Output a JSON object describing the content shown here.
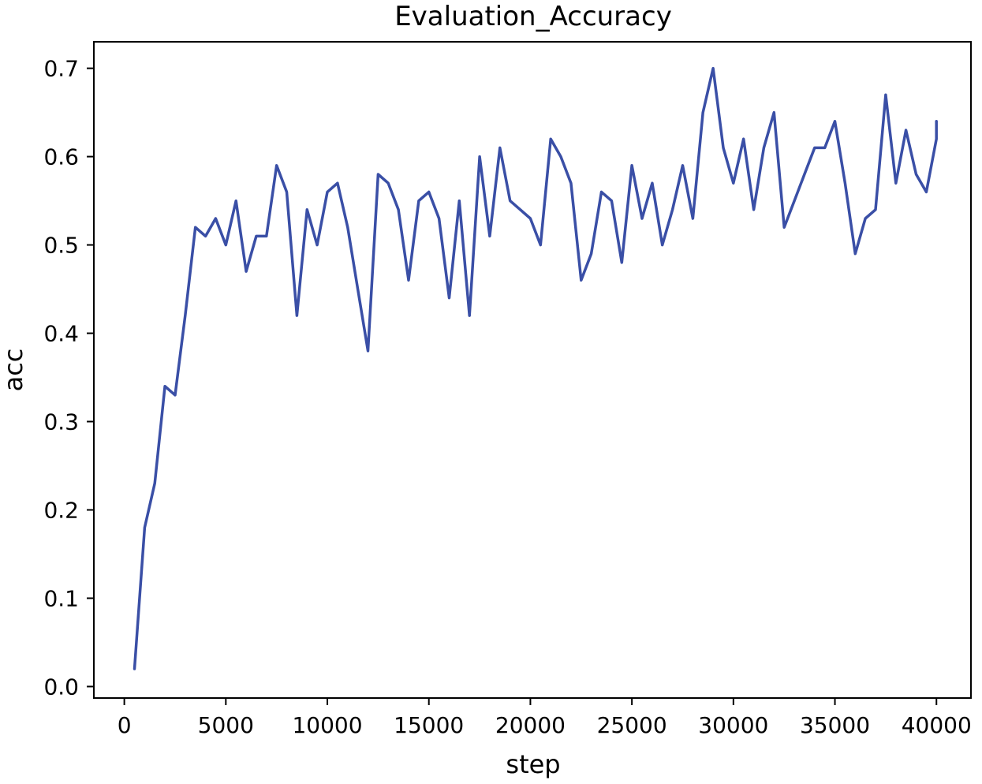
{
  "chart_data": {
    "type": "line",
    "title": "Evaluation_Accuracy",
    "xlabel": "step",
    "ylabel": "acc",
    "xlim": [
      -1500,
      41700
    ],
    "ylim": [
      -0.013,
      0.73
    ],
    "xticks": [
      0,
      5000,
      10000,
      15000,
      20000,
      25000,
      30000,
      35000,
      40000
    ],
    "yticks": [
      0.0,
      0.1,
      0.2,
      0.3,
      0.4,
      0.5,
      0.6,
      0.7
    ],
    "ytick_labels": [
      "0.0",
      "0.1",
      "0.2",
      "0.3",
      "0.4",
      "0.5",
      "0.6",
      "0.7"
    ],
    "grid": false,
    "legend": "none",
    "color": "#3a4fa6",
    "series": [
      {
        "x": [
          500,
          1000,
          1500,
          2000,
          2500,
          3000,
          3500,
          4000,
          4500,
          5000,
          5500,
          6000,
          6500,
          7000,
          7500,
          8000,
          8500,
          9000,
          9500,
          10000,
          10500,
          11000,
          11500,
          12000,
          12500,
          13000,
          13500,
          14000,
          14500,
          15000,
          15500,
          16000,
          16500,
          17000,
          17500,
          18000,
          18500,
          19000,
          19500,
          20000,
          20500,
          21000,
          21500,
          22000,
          22500,
          23000,
          23500,
          24000,
          24500,
          25000,
          25500,
          26000,
          26500,
          27000,
          27500,
          28000,
          28500,
          29000,
          29500,
          30000,
          30500,
          31000,
          31500,
          32000,
          32500,
          33000,
          33500,
          34000,
          34500,
          35000,
          35500,
          36000,
          36500,
          37000,
          37500,
          38000,
          38500,
          39000,
          39500,
          40000,
          40000
        ],
        "values": [
          0.02,
          0.18,
          0.23,
          0.34,
          0.33,
          0.42,
          0.52,
          0.51,
          0.53,
          0.5,
          0.55,
          0.47,
          0.51,
          0.51,
          0.59,
          0.56,
          0.42,
          0.54,
          0.5,
          0.56,
          0.57,
          0.52,
          0.45,
          0.38,
          0.58,
          0.57,
          0.54,
          0.46,
          0.55,
          0.56,
          0.53,
          0.44,
          0.55,
          0.42,
          0.6,
          0.51,
          0.61,
          0.55,
          0.54,
          0.53,
          0.5,
          0.62,
          0.6,
          0.57,
          0.46,
          0.49,
          0.56,
          0.55,
          0.48,
          0.59,
          0.53,
          0.57,
          0.5,
          0.54,
          0.59,
          0.53,
          0.65,
          0.7,
          0.61,
          0.57,
          0.62,
          0.54,
          0.61,
          0.65,
          0.52,
          0.55,
          0.58,
          0.61,
          0.61,
          0.64,
          0.57,
          0.49,
          0.53,
          0.54,
          0.67,
          0.57,
          0.63,
          0.58,
          0.56,
          0.62,
          0.64
        ]
      }
    ]
  }
}
